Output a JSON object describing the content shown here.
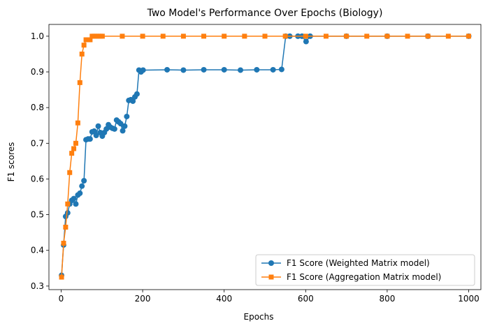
{
  "chart_data": {
    "type": "line",
    "title": "Two Model's Performance Over Epochs (Biology)",
    "xlabel": "Epochs",
    "ylabel": "F1 scores",
    "xlim": [
      -30,
      1030
    ],
    "ylim": [
      0.29,
      1.033
    ],
    "xticks": [
      0,
      200,
      400,
      600,
      800,
      1000
    ],
    "yticks": [
      0.3,
      0.4,
      0.5,
      0.6,
      0.7,
      0.8,
      0.9,
      1.0
    ],
    "xtick_labels": [
      "0",
      "200",
      "400",
      "600",
      "800",
      "1000"
    ],
    "ytick_labels": [
      "0.3",
      "0.4",
      "0.5",
      "0.6",
      "0.7",
      "0.8",
      "0.9",
      "1.0"
    ],
    "grid": false,
    "legend_position": "lower-right",
    "series": [
      {
        "name": "F1 Score (Weighted Matrix model)",
        "color": "#1f77b4",
        "marker": "circle",
        "points": [
          [
            1,
            0.33
          ],
          [
            6,
            0.415
          ],
          [
            11,
            0.495
          ],
          [
            16,
            0.505
          ],
          [
            21,
            0.53
          ],
          [
            26,
            0.54
          ],
          [
            31,
            0.545
          ],
          [
            36,
            0.53
          ],
          [
            41,
            0.555
          ],
          [
            46,
            0.56
          ],
          [
            51,
            0.58
          ],
          [
            56,
            0.595
          ],
          [
            61,
            0.71
          ],
          [
            66,
            0.712
          ],
          [
            71,
            0.712
          ],
          [
            76,
            0.732
          ],
          [
            81,
            0.734
          ],
          [
            86,
            0.722
          ],
          [
            91,
            0.748
          ],
          [
            96,
            0.73
          ],
          [
            101,
            0.72
          ],
          [
            106,
            0.73
          ],
          [
            111,
            0.74
          ],
          [
            116,
            0.752
          ],
          [
            121,
            0.745
          ],
          [
            126,
            0.742
          ],
          [
            131,
            0.74
          ],
          [
            136,
            0.765
          ],
          [
            141,
            0.76
          ],
          [
            146,
            0.755
          ],
          [
            151,
            0.735
          ],
          [
            156,
            0.748
          ],
          [
            161,
            0.775
          ],
          [
            166,
            0.82
          ],
          [
            171,
            0.822
          ],
          [
            176,
            0.818
          ],
          [
            181,
            0.83
          ],
          [
            186,
            0.838
          ],
          [
            191,
            0.905
          ],
          [
            196,
            0.9
          ],
          [
            201,
            0.905
          ],
          [
            260,
            0.906
          ],
          [
            300,
            0.905
          ],
          [
            350,
            0.906
          ],
          [
            400,
            0.906
          ],
          [
            440,
            0.905
          ],
          [
            480,
            0.906
          ],
          [
            520,
            0.906
          ],
          [
            541,
            0.907
          ],
          [
            551,
            1.0
          ],
          [
            561,
            1.0
          ],
          [
            581,
            1.0
          ],
          [
            591,
            1.0
          ],
          [
            601,
            0.985
          ],
          [
            611,
            1.0
          ],
          [
            700,
            1.0
          ],
          [
            800,
            1.0
          ],
          [
            900,
            1.0
          ],
          [
            1000,
            1.0
          ]
        ]
      },
      {
        "name": "F1 Score (Aggregation Matrix model)",
        "color": "#ff7f0e",
        "marker": "square",
        "points": [
          [
            1,
            0.325
          ],
          [
            6,
            0.42
          ],
          [
            11,
            0.465
          ],
          [
            16,
            0.53
          ],
          [
            21,
            0.618
          ],
          [
            26,
            0.672
          ],
          [
            31,
            0.685
          ],
          [
            36,
            0.7
          ],
          [
            41,
            0.757
          ],
          [
            46,
            0.87
          ],
          [
            51,
            0.95
          ],
          [
            56,
            0.975
          ],
          [
            61,
            0.99
          ],
          [
            66,
            0.99
          ],
          [
            71,
            0.99
          ],
          [
            76,
            1.0
          ],
          [
            81,
            1.0
          ],
          [
            86,
            1.0
          ],
          [
            91,
            1.0
          ],
          [
            96,
            1.0
          ],
          [
            101,
            1.0
          ],
          [
            150,
            1.0
          ],
          [
            200,
            1.0
          ],
          [
            250,
            1.0
          ],
          [
            300,
            1.0
          ],
          [
            350,
            1.0
          ],
          [
            400,
            1.0
          ],
          [
            450,
            1.0
          ],
          [
            500,
            1.0
          ],
          [
            550,
            1.0
          ],
          [
            600,
            1.0
          ],
          [
            650,
            1.0
          ],
          [
            700,
            1.0
          ],
          [
            750,
            1.0
          ],
          [
            800,
            1.0
          ],
          [
            850,
            1.0
          ],
          [
            900,
            1.0
          ],
          [
            950,
            1.0
          ],
          [
            1000,
            1.0
          ]
        ]
      }
    ]
  }
}
